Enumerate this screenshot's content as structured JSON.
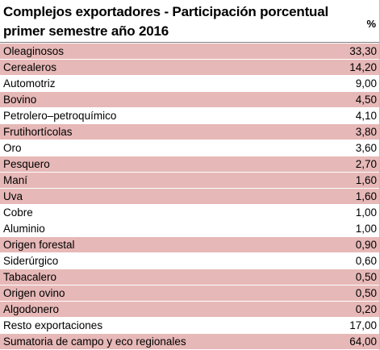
{
  "title_line1": "Complejos exportadores - Participación porcentual",
  "title_line2": "primer semestre año 2016",
  "pct_header": "%",
  "rows": [
    {
      "name": "Oleaginosos",
      "value": "33,30",
      "highlight": true
    },
    {
      "name": "Cerealeros",
      "value": "14,20",
      "highlight": true
    },
    {
      "name": "Automotriz",
      "value": "9,00",
      "highlight": false
    },
    {
      "name": "Bovino",
      "value": "4,50",
      "highlight": true
    },
    {
      "name": "Petrolero–petroquímico",
      "value": "4,10",
      "highlight": false
    },
    {
      "name": "Frutihortícolas",
      "value": "3,80",
      "highlight": true
    },
    {
      "name": "Oro",
      "value": "3,60",
      "highlight": false
    },
    {
      "name": "Pesquero",
      "value": "2,70",
      "highlight": true
    },
    {
      "name": "Maní",
      "value": "1,60",
      "highlight": true
    },
    {
      "name": "Uva",
      "value": "1,60",
      "highlight": true
    },
    {
      "name": "Cobre",
      "value": "1,00",
      "highlight": false
    },
    {
      "name": "Aluminio",
      "value": "1,00",
      "highlight": false
    },
    {
      "name": "Origen forestal",
      "value": "0,90",
      "highlight": true
    },
    {
      "name": "Siderúrgico",
      "value": "0,60",
      "highlight": false
    },
    {
      "name": "Tabacalero",
      "value": "0,50",
      "highlight": true
    },
    {
      "name": "Origen ovino",
      "value": "0,50",
      "highlight": true
    },
    {
      "name": "Algodonero",
      "value": "0,20",
      "highlight": true
    },
    {
      "name": "Resto exportaciones",
      "value": "17,00",
      "highlight": false
    },
    {
      "name": "Sumatoria de campo y eco regionales",
      "value": "64,00",
      "highlight": true
    }
  ],
  "colors": {
    "highlight": "#e6b8b7",
    "rule": "#7f7f7f"
  }
}
